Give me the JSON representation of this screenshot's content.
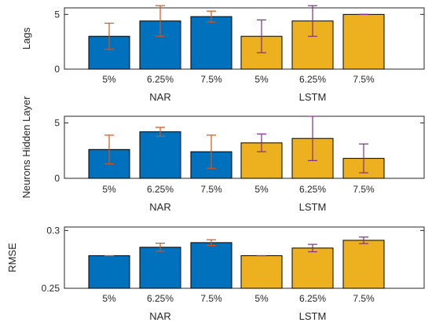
{
  "colors": {
    "nar": "#0072BD",
    "lstm": "#EDB120",
    "error_bar": "#D95319",
    "error_bar_lstm": "#7E2F8E",
    "axis": "#262626"
  },
  "chart_data": [
    {
      "type": "bar",
      "ylabel": "Lags",
      "ylim": [
        0,
        5.6
      ],
      "yticks": [
        "0",
        "5"
      ],
      "ytick_values": [
        0,
        5
      ],
      "categories": [
        "5%",
        "6.25%",
        "7.5%",
        "5%",
        "6.25%",
        "7.5%"
      ],
      "groups": [
        {
          "name": "NAR",
          "categories": [
            "5%",
            "6.25%",
            "7.5%"
          ]
        },
        {
          "name": "LSTM",
          "categories": [
            "5%",
            "6.25%",
            "7.5%"
          ]
        }
      ],
      "values": [
        3.0,
        4.4,
        4.8,
        3.0,
        4.4,
        5.0
      ],
      "errors": [
        1.2,
        1.4,
        0.5,
        1.5,
        1.4,
        0.0
      ],
      "bar_colors": [
        "nar",
        "nar",
        "nar",
        "lstm",
        "lstm",
        "lstm"
      ],
      "grid": false
    },
    {
      "type": "bar",
      "ylabel": "Neurons Hidden Layer",
      "ylim": [
        0,
        5.6
      ],
      "yticks": [
        "0",
        "5"
      ],
      "ytick_values": [
        0,
        5
      ],
      "categories": [
        "5%",
        "6.25%",
        "7.5%",
        "5%",
        "6.25%",
        "7.5%"
      ],
      "groups": [
        {
          "name": "NAR",
          "categories": [
            "5%",
            "6.25%",
            "7.5%"
          ]
        },
        {
          "name": "LSTM",
          "categories": [
            "5%",
            "6.25%",
            "7.5%"
          ]
        }
      ],
      "values": [
        2.6,
        4.2,
        2.4,
        3.2,
        3.6,
        1.8
      ],
      "errors": [
        1.3,
        0.4,
        1.5,
        0.8,
        2.0,
        1.3
      ],
      "bar_colors": [
        "nar",
        "nar",
        "nar",
        "lstm",
        "lstm",
        "lstm"
      ],
      "grid": false
    },
    {
      "type": "bar",
      "ylabel": "RMSE",
      "ylim": [
        0.25,
        0.303
      ],
      "yticks": [
        "0.25",
        "0.3"
      ],
      "ytick_values": [
        0.25,
        0.3
      ],
      "categories": [
        "5%",
        "6.25%",
        "7.5%",
        "5%",
        "6.25%",
        "7.5%"
      ],
      "groups": [
        {
          "name": "NAR",
          "categories": [
            "5%",
            "6.25%",
            "7.5%"
          ]
        },
        {
          "name": "LSTM",
          "categories": [
            "5%",
            "6.25%",
            "7.5%"
          ]
        }
      ],
      "values": [
        0.2782,
        0.2855,
        0.2895,
        0.2782,
        0.2848,
        0.2915
      ],
      "errors": [
        0.0,
        0.0035,
        0.0025,
        0.0,
        0.0032,
        0.0028
      ],
      "bar_colors": [
        "nar",
        "nar",
        "nar",
        "lstm",
        "lstm",
        "lstm"
      ],
      "grid": false
    }
  ]
}
